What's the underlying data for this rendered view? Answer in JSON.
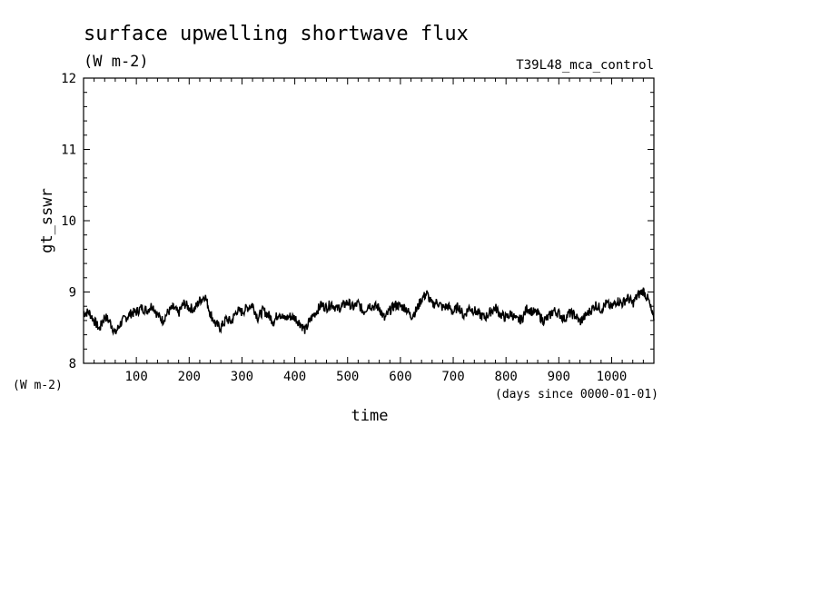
{
  "chart_data": {
    "type": "line",
    "title": "surface upwelling shortwave flux",
    "units": "(W m-2)",
    "experiment": "T39L48_mca_control",
    "ylabel": "gt_sswr",
    "yunit_label": "(W m-2)",
    "xlabel": "time",
    "xunit_label": "(days since 0000-01-01)",
    "xlim": [
      0,
      1080
    ],
    "ylim": [
      8,
      12
    ],
    "xticks": [
      100,
      200,
      300,
      400,
      500,
      600,
      700,
      800,
      900,
      1000
    ],
    "yticks": [
      8,
      9,
      10,
      11,
      12
    ],
    "xtick_labels": [
      "100",
      "200",
      "300",
      "400",
      "500",
      "600",
      "700",
      "800",
      "900",
      "1000"
    ],
    "ytick_labels": [
      "8",
      "9",
      "10",
      "11",
      "12"
    ],
    "grid": false,
    "line_color": "#000000",
    "series": [
      {
        "x": [
          0,
          10,
          20,
          30,
          40,
          50,
          60,
          70,
          80,
          90,
          100,
          110,
          120,
          130,
          140,
          150,
          160,
          170,
          180,
          190,
          200,
          210,
          220,
          230,
          240,
          250,
          260,
          270,
          280,
          290,
          300,
          310,
          320,
          330,
          340,
          350,
          360,
          370,
          380,
          390,
          400,
          410,
          420,
          430,
          440,
          450,
          460,
          470,
          480,
          490,
          500,
          510,
          520,
          530,
          540,
          550,
          560,
          570,
          580,
          590,
          600,
          610,
          620,
          630,
          640,
          650,
          660,
          670,
          680,
          690,
          700,
          710,
          720,
          730,
          740,
          750,
          760,
          770,
          780,
          790,
          800,
          810,
          820,
          830,
          840,
          850,
          860,
          870,
          880,
          890,
          900,
          910,
          920,
          930,
          940,
          950,
          960,
          970,
          980,
          990,
          1000,
          1010,
          1020,
          1030,
          1040,
          1050,
          1060,
          1070,
          1080
        ],
        "y": [
          8.7,
          8.72,
          8.6,
          8.48,
          8.66,
          8.58,
          8.42,
          8.56,
          8.64,
          8.7,
          8.72,
          8.78,
          8.74,
          8.82,
          8.68,
          8.6,
          8.72,
          8.78,
          8.7,
          8.84,
          8.78,
          8.76,
          8.88,
          8.95,
          8.7,
          8.55,
          8.5,
          8.62,
          8.58,
          8.74,
          8.72,
          8.78,
          8.82,
          8.64,
          8.74,
          8.68,
          8.58,
          8.72,
          8.62,
          8.66,
          8.64,
          8.56,
          8.46,
          8.62,
          8.72,
          8.82,
          8.78,
          8.84,
          8.76,
          8.8,
          8.86,
          8.78,
          8.84,
          8.72,
          8.82,
          8.8,
          8.78,
          8.62,
          8.74,
          8.82,
          8.8,
          8.78,
          8.66,
          8.74,
          8.9,
          8.98,
          8.82,
          8.86,
          8.78,
          8.8,
          8.72,
          8.8,
          8.66,
          8.78,
          8.74,
          8.68,
          8.64,
          8.72,
          8.78,
          8.68,
          8.64,
          8.7,
          8.6,
          8.62,
          8.78,
          8.72,
          8.7,
          8.6,
          8.64,
          8.74,
          8.7,
          8.62,
          8.7,
          8.68,
          8.58,
          8.66,
          8.74,
          8.82,
          8.76,
          8.84,
          8.78,
          8.88,
          8.84,
          8.92,
          8.84,
          8.96,
          9.02,
          8.88,
          8.6
        ]
      }
    ]
  }
}
